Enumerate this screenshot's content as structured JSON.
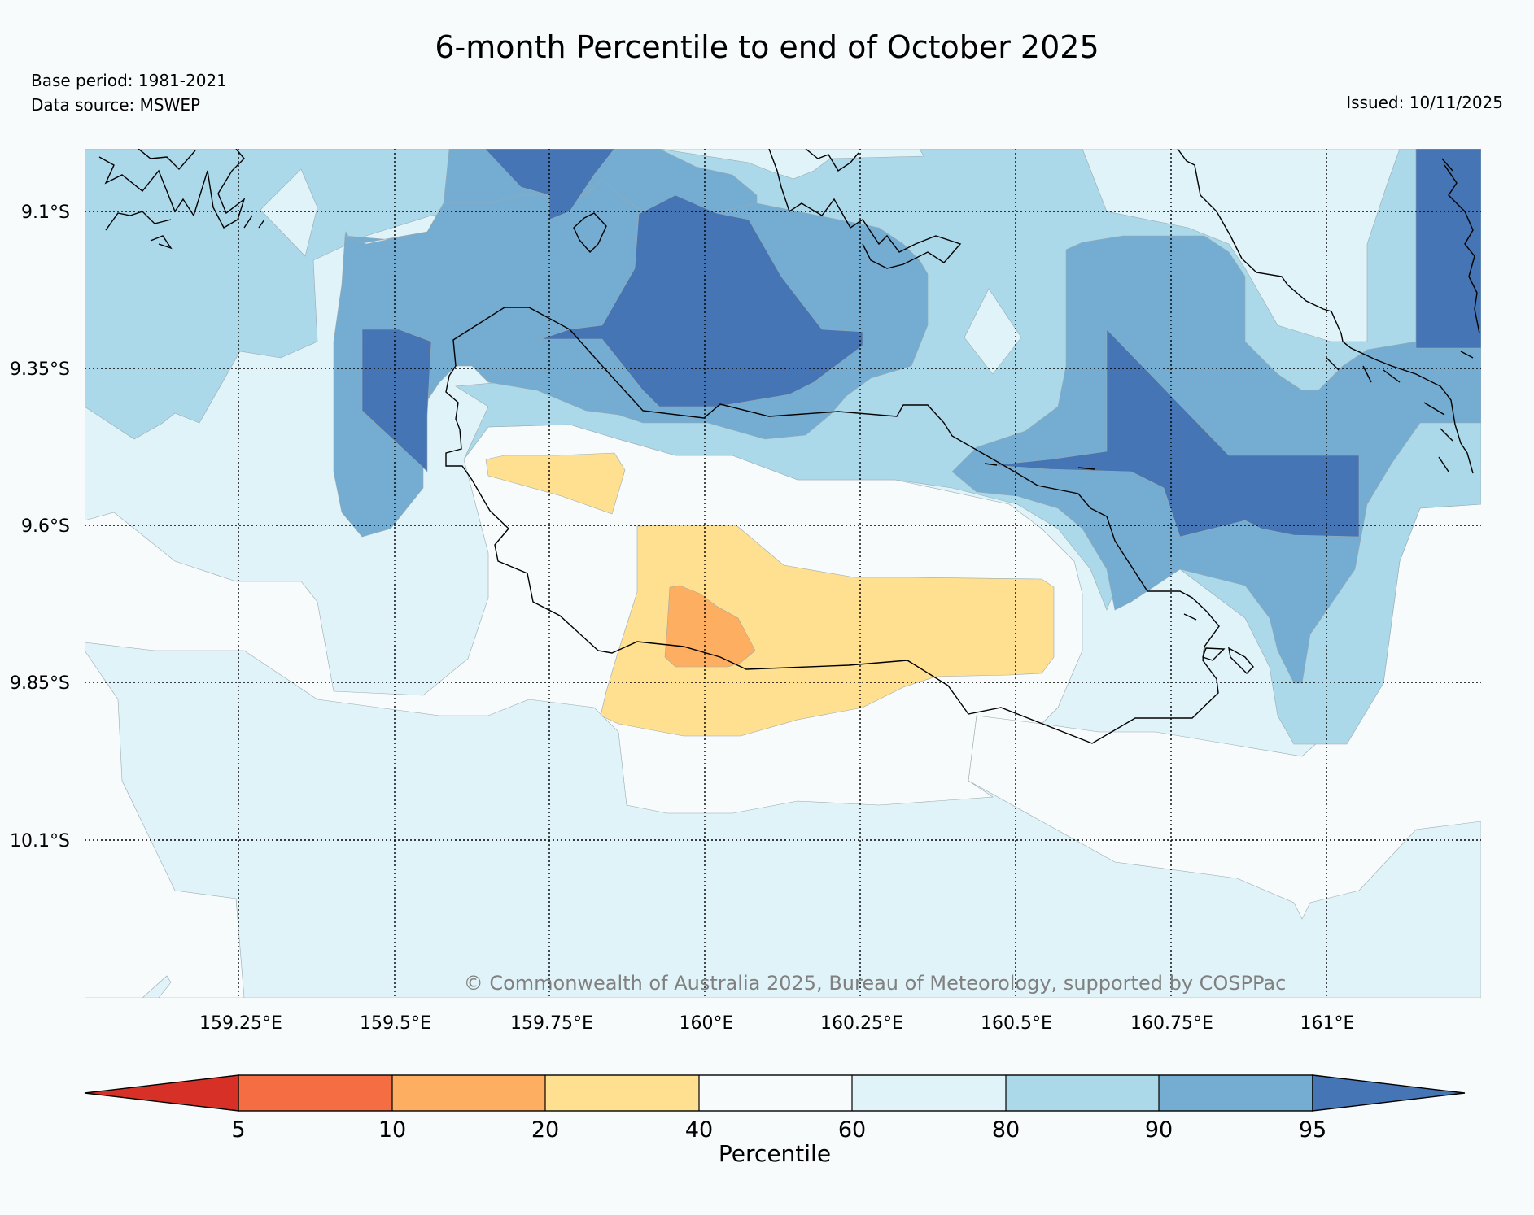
{
  "title": "6-month Percentile to end of October 2025",
  "meta": {
    "base_period": "Base period: 1981-2021",
    "data_source": "Data source: MSWEP",
    "issued": "Issued: 10/11/2025"
  },
  "map": {
    "lat_labels": [
      "9.1°S",
      "9.35°S",
      "9.6°S",
      "9.85°S",
      "10.1°S"
    ],
    "lon_labels": [
      "159.25°E",
      "159.5°E",
      "159.75°E",
      "160°E",
      "160.25°E",
      "160.5°E",
      "160.75°E",
      "161°E"
    ],
    "copyright": "© Commonwealth of Australia 2025, Bureau of Meteorology, supported by COSPPac"
  },
  "colorbar": {
    "label": "Percentile",
    "ticks": [
      "5",
      "10",
      "20",
      "40",
      "60",
      "80",
      "90",
      "95"
    ],
    "colors": {
      "below_5": "#d73027",
      "p5_10": "#f46d43",
      "p10_20": "#fdae61",
      "p20_40": "#fee090",
      "p40_60": "#f7fbfc",
      "p60_80": "#e0f3f8",
      "p80_90": "#abd9e9",
      "p90_95": "#74add1",
      "above_95": "#4575b4"
    }
  }
}
